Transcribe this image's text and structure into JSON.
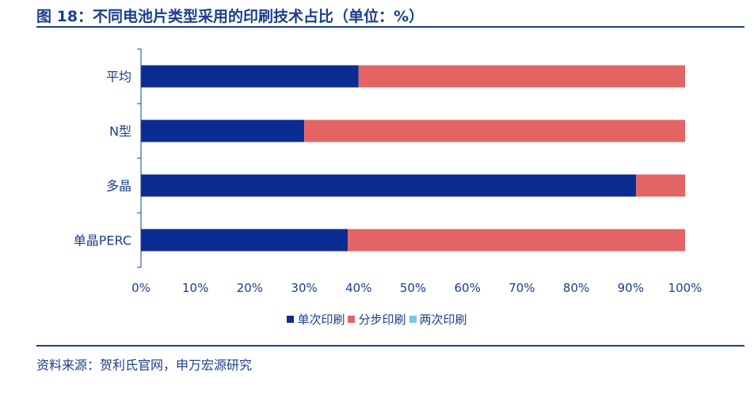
{
  "title": "图 18：不同电池片类型采用的印刷技术占比（单位：%）",
  "source": "资料来源：贺利氏官网，申万宏源研究",
  "colors": {
    "series1": "#0b2d91",
    "series2": "#e46464",
    "series3": "#6fcde8",
    "axis": "#1b3f8b"
  },
  "chart_data": {
    "type": "bar",
    "orientation": "horizontal",
    "stacked": true,
    "categories": [
      "平均",
      "N型",
      "多晶",
      "单晶PERC"
    ],
    "series": [
      {
        "name": "单次印刷",
        "values": [
          40,
          30,
          91,
          38
        ]
      },
      {
        "name": "分步印刷",
        "values": [
          60,
          70,
          9,
          62
        ]
      },
      {
        "name": "两次印刷",
        "values": [
          0,
          0,
          0,
          0
        ]
      }
    ],
    "xticks": [
      "0%",
      "10%",
      "20%",
      "30%",
      "40%",
      "50%",
      "60%",
      "70%",
      "80%",
      "90%",
      "100%"
    ],
    "xlim": [
      0,
      100
    ],
    "grid": false,
    "legend": "bottom"
  }
}
